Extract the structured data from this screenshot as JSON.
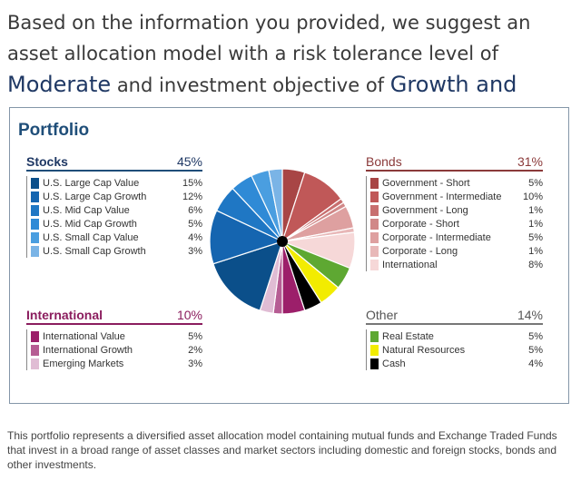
{
  "headline": {
    "part1": "Based on the information you provided, we suggest an asset allocation model with a risk tolerance level of ",
    "risk": "Moderate",
    "part2": " and investment objective of ",
    "objective": "Growth and Income",
    "part3": "."
  },
  "portfolio": {
    "title": "Portfolio",
    "stocks": {
      "name": "Stocks",
      "total": "45%",
      "items": [
        {
          "label": "U.S. Large Cap Value",
          "value": "15%",
          "color": "#0b4f8a"
        },
        {
          "label": "U.S. Large Cap Growth",
          "value": "12%",
          "color": "#1565b0"
        },
        {
          "label": "U.S. Mid Cap Value",
          "value": "6%",
          "color": "#1f77c4"
        },
        {
          "label": "U.S. Mid Cap Growth",
          "value": "5%",
          "color": "#2f8ad6"
        },
        {
          "label": "U.S. Small Cap Value",
          "value": "4%",
          "color": "#4a9ee0"
        },
        {
          "label": "U.S. Small Cap Growth",
          "value": "3%",
          "color": "#7ab4e6"
        }
      ]
    },
    "bonds": {
      "name": "Bonds",
      "total": "31%",
      "items": [
        {
          "label": "Government - Short",
          "value": "5%",
          "color": "#a84545"
        },
        {
          "label": "Government - Intermediate",
          "value": "10%",
          "color": "#c05858"
        },
        {
          "label": "Government - Long",
          "value": "1%",
          "color": "#c86f6f"
        },
        {
          "label": "Corporate - Short",
          "value": "1%",
          "color": "#d18888"
        },
        {
          "label": "Corporate - Intermediate",
          "value": "5%",
          "color": "#dea0a0"
        },
        {
          "label": "Corporate - Long",
          "value": "1%",
          "color": "#e8b8b8"
        },
        {
          "label": "International",
          "value": "8%",
          "color": "#f6d8d8"
        }
      ]
    },
    "international": {
      "name": "International",
      "total": "10%",
      "items": [
        {
          "label": "International Value",
          "value": "5%",
          "color": "#9c1f6a"
        },
        {
          "label": "International Growth",
          "value": "2%",
          "color": "#b65c93"
        },
        {
          "label": "Emerging Markets",
          "value": "3%",
          "color": "#e0bcd4"
        }
      ]
    },
    "other": {
      "name": "Other",
      "total": "14%",
      "items": [
        {
          "label": "Real Estate",
          "value": "5%",
          "color": "#5ea832"
        },
        {
          "label": "Natural Resources",
          "value": "5%",
          "color": "#f2ec00"
        },
        {
          "label": "Cash",
          "value": "4%",
          "color": "#000000"
        }
      ]
    }
  },
  "chart_data": {
    "type": "pie",
    "title": "Portfolio",
    "start_order": [
      "Bonds",
      "Other",
      "International",
      "Stocks"
    ],
    "slices": [
      {
        "label": "Government - Short",
        "value": 5,
        "color": "#a84545"
      },
      {
        "label": "Government - Intermediate",
        "value": 10,
        "color": "#c05858"
      },
      {
        "label": "Government - Long",
        "value": 1,
        "color": "#c86f6f"
      },
      {
        "label": "Corporate - Short",
        "value": 1,
        "color": "#d18888"
      },
      {
        "label": "Corporate - Intermediate",
        "value": 5,
        "color": "#dea0a0"
      },
      {
        "label": "Corporate - Long",
        "value": 1,
        "color": "#e8b8b8"
      },
      {
        "label": "International",
        "value": 8,
        "color": "#f6d8d8"
      },
      {
        "label": "Real Estate",
        "value": 5,
        "color": "#5ea832"
      },
      {
        "label": "Natural Resources",
        "value": 5,
        "color": "#f2ec00"
      },
      {
        "label": "Cash",
        "value": 4,
        "color": "#000000"
      },
      {
        "label": "International Value",
        "value": 5,
        "color": "#9c1f6a"
      },
      {
        "label": "International Growth",
        "value": 2,
        "color": "#b65c93"
      },
      {
        "label": "Emerging Markets",
        "value": 3,
        "color": "#e0bcd4"
      },
      {
        "label": "U.S. Large Cap Value",
        "value": 15,
        "color": "#0b4f8a"
      },
      {
        "label": "U.S. Large Cap Growth",
        "value": 12,
        "color": "#1565b0"
      },
      {
        "label": "U.S. Mid Cap Value",
        "value": 6,
        "color": "#1f77c4"
      },
      {
        "label": "U.S. Mid Cap Growth",
        "value": 5,
        "color": "#2f8ad6"
      },
      {
        "label": "U.S. Small Cap Value",
        "value": 4,
        "color": "#4a9ee0"
      },
      {
        "label": "U.S. Small Cap Growth",
        "value": 3,
        "color": "#7ab4e6"
      }
    ]
  },
  "footer": {
    "text": "This portfolio represents a diversified asset allocation model containing mutual funds and Exchange Traded Funds that invest in a broad range of asset classes and market sectors including domestic and foreign stocks, bonds and other investments."
  }
}
